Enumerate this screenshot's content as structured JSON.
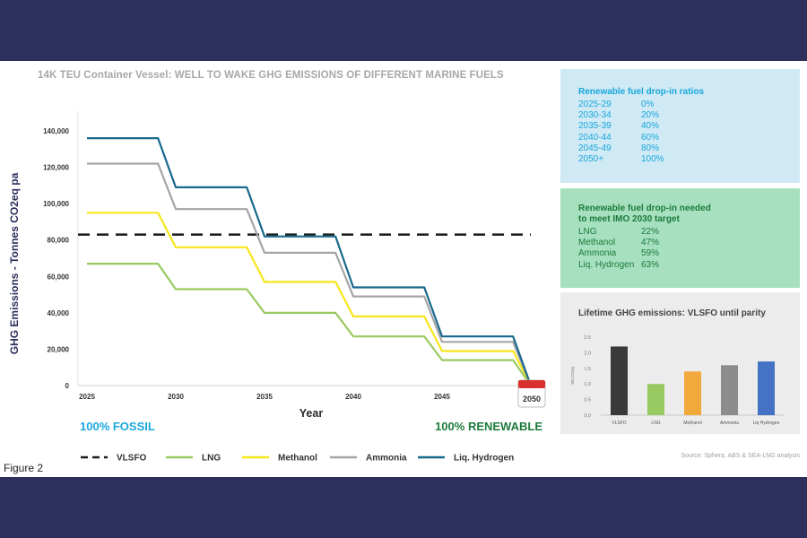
{
  "title": "14K TEU Container Vessel: WELL TO WAKE GHG EMISSIONS OF DIFFERENT MARINE FUELS",
  "figure_label": "Figure 2",
  "source": "Source: Sphera, ABS & SEA-LNG analysis",
  "fossil_label": "100% FOSSIL",
  "renewable_label": "100% RENEWABLE",
  "calendar_label": "2050",
  "colors": {
    "VLSFO": "#1a1a1a",
    "LNG": "#99c961",
    "Methanol": "#f6e61a",
    "Ammonia": "#a5a5a5",
    "Liq. Hydrogen": "#17698d",
    "fossil": "#1aa8dc",
    "renewable": "#1d7a3c"
  },
  "info_boxes": {
    "dropin_ratios": {
      "title": "Renewable fuel drop-in ratios",
      "rows": [
        {
          "k": "2025-29",
          "v": "0%"
        },
        {
          "k": "2030-34",
          "v": "20%"
        },
        {
          "k": "2035-39",
          "v": "40%"
        },
        {
          "k": "2040-44",
          "v": "60%"
        },
        {
          "k": "2045-49",
          "v": "80%"
        },
        {
          "k": "2050+",
          "v": "100%"
        }
      ]
    },
    "imo_target": {
      "title_line1": "Renewable fuel drop-in needed",
      "title_line2": "to meet IMO 2030 target",
      "rows": [
        {
          "k": "LNG",
          "v": "22%"
        },
        {
          "k": "Methanol",
          "v": "47%"
        },
        {
          "k": "Ammonia",
          "v": "59%"
        },
        {
          "k": "Liq. Hydrogen",
          "v": "63%"
        }
      ]
    }
  },
  "chart_data": [
    {
      "type": "line",
      "title": "14K TEU Container Vessel: WELL TO WAKE GHG EMISSIONS OF DIFFERENT MARINE FUELS",
      "xlabel": "Year",
      "ylabel": "GHG Emissions - Tonnes CO2eq pa",
      "xlim": [
        2025,
        2050
      ],
      "ylim": [
        0,
        140000
      ],
      "x_ticks": [
        "2025",
        "2030",
        "2035",
        "2040",
        "2045",
        "2050"
      ],
      "y_ticks": [
        "0",
        "20,000",
        "40,000",
        "60,000",
        "80,000",
        "100,000",
        "120,000",
        "140,000"
      ],
      "legend_position": "bottom",
      "series": [
        {
          "name": "VLSFO",
          "style": "dashed",
          "x": [
            2025,
            2050
          ],
          "y": [
            83000,
            83000
          ]
        },
        {
          "name": "LNG",
          "x": [
            2025,
            2029,
            2030,
            2034,
            2035,
            2039,
            2040,
            2044,
            2045,
            2049,
            2050
          ],
          "y": [
            67000,
            67000,
            53000,
            53000,
            40000,
            40000,
            27000,
            27000,
            14000,
            14000,
            0
          ]
        },
        {
          "name": "Methanol",
          "x": [
            2025,
            2029,
            2030,
            2034,
            2035,
            2039,
            2040,
            2044,
            2045,
            2049,
            2050
          ],
          "y": [
            95000,
            95000,
            76000,
            76000,
            57000,
            57000,
            38000,
            38000,
            19000,
            19000,
            0
          ]
        },
        {
          "name": "Ammonia",
          "x": [
            2025,
            2029,
            2030,
            2034,
            2035,
            2039,
            2040,
            2044,
            2045,
            2049,
            2050
          ],
          "y": [
            122000,
            122000,
            97000,
            97000,
            73000,
            73000,
            49000,
            49000,
            24000,
            24000,
            0
          ]
        },
        {
          "name": "Liq. Hydrogen",
          "x": [
            2025,
            2029,
            2030,
            2034,
            2035,
            2039,
            2040,
            2044,
            2045,
            2049,
            2050
          ],
          "y": [
            136000,
            136000,
            109000,
            109000,
            82000,
            82000,
            54000,
            54000,
            27000,
            27000,
            0
          ]
        }
      ]
    },
    {
      "type": "bar",
      "title": "Lifetime GHG emissions: VLSFO until parity",
      "ylabel": "MtCO2eq",
      "categories": [
        "VLSFO",
        "LNG",
        "Methanol",
        "Ammonia",
        "Liq Hydrogen"
      ],
      "values": [
        2.2,
        1.0,
        1.4,
        1.6,
        1.72
      ],
      "ylim": [
        0,
        2.5
      ],
      "y_ticks": [
        "0.0",
        "0.5",
        "1.0",
        "1.5",
        "2.0",
        "2.5"
      ],
      "colors": [
        "#3a3a3a",
        "#99c961",
        "#f2a93b",
        "#8c8c8c",
        "#4472c4"
      ]
    }
  ]
}
